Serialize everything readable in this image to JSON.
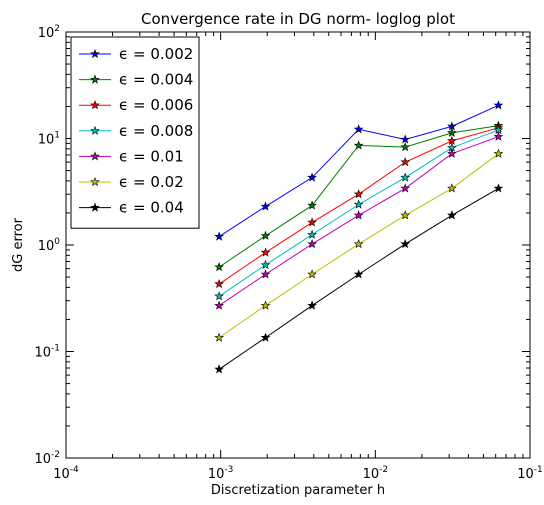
{
  "chart_data": {
    "type": "line",
    "title": "Convergence rate in DG norm- loglog plot",
    "xlabel": "Discretization parameter h",
    "ylabel": "dG error",
    "xscale": "log",
    "yscale": "log",
    "xlim": [
      0.0001,
      0.1
    ],
    "ylim": [
      0.01,
      100
    ],
    "x_ticks": [
      {
        "value": 0.0001,
        "base": "10",
        "exp": "-4"
      },
      {
        "value": 0.001,
        "base": "10",
        "exp": "-3"
      },
      {
        "value": 0.01,
        "base": "10",
        "exp": "-2"
      },
      {
        "value": 0.1,
        "base": "10",
        "exp": "-1"
      }
    ],
    "y_ticks": [
      {
        "value": 0.01,
        "base": "10",
        "exp": "-2"
      },
      {
        "value": 0.1,
        "base": "10",
        "exp": "-1"
      },
      {
        "value": 1,
        "base": "10",
        "exp": "0"
      },
      {
        "value": 10,
        "base": "10",
        "exp": "1"
      },
      {
        "value": 100,
        "base": "10",
        "exp": "2"
      }
    ],
    "grid": false,
    "legend_position": "top-left",
    "marker": "star",
    "x": [
      0.000977,
      0.00195,
      0.0039,
      0.0078,
      0.0156,
      0.03125,
      0.0625
    ],
    "series": [
      {
        "name": "ϵ = 0.002",
        "color": "#0000ff",
        "values": [
          1.2,
          2.3,
          4.3,
          12.2,
          9.8,
          13.0,
          20.5
        ]
      },
      {
        "name": "ϵ = 0.004",
        "color": "#007f00",
        "values": [
          0.62,
          1.22,
          2.35,
          8.6,
          8.3,
          11.3,
          13.2
        ]
      },
      {
        "name": "ϵ = 0.006",
        "color": "#ff0000",
        "values": [
          0.43,
          0.85,
          1.63,
          3.0,
          6.0,
          9.5,
          12.6
        ]
      },
      {
        "name": "ϵ = 0.008",
        "color": "#00bfbf",
        "values": [
          0.33,
          0.65,
          1.25,
          2.4,
          4.3,
          8.2,
          12.0
        ]
      },
      {
        "name": "ϵ = 0.01",
        "color": "#bf00bf",
        "values": [
          0.27,
          0.53,
          1.02,
          1.9,
          3.4,
          7.2,
          10.4
        ]
      },
      {
        "name": "ϵ = 0.02",
        "color": "#bfbf00",
        "values": [
          0.135,
          0.27,
          0.53,
          1.02,
          1.9,
          3.4,
          7.2
        ]
      },
      {
        "name": "ϵ = 0.04",
        "color": "#000000",
        "values": [
          0.068,
          0.135,
          0.27,
          0.53,
          1.02,
          1.9,
          3.4
        ]
      }
    ]
  }
}
